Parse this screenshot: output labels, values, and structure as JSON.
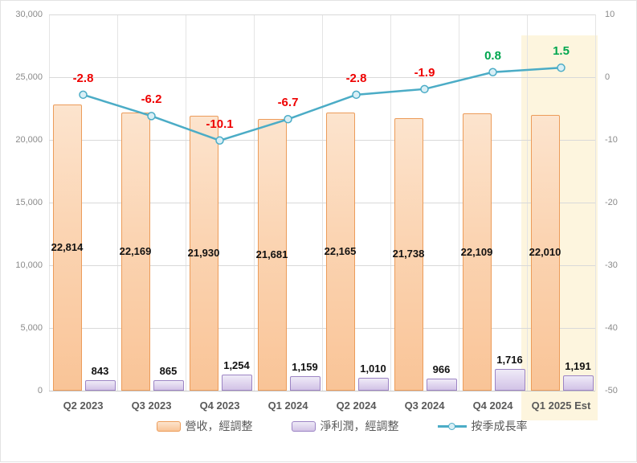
{
  "chart_data": {
    "type": "combo-bar-line",
    "title": "",
    "categories": [
      "Q2 2023",
      "Q3 2023",
      "Q4 2023",
      "Q1 2024",
      "Q2 2024",
      "Q3 2024",
      "Q4 2024",
      "Q1 2025 Est"
    ],
    "series": [
      {
        "name": "營收，經調整",
        "type": "bar",
        "axis": "left",
        "values": [
          22814,
          22169,
          21930,
          21681,
          22165,
          21738,
          22109,
          22010
        ],
        "labels": [
          "22,814",
          "22,169",
          "21,930",
          "21,681",
          "22,165",
          "21,738",
          "22,109",
          "22,010"
        ]
      },
      {
        "name": "淨利潤，經調整",
        "type": "bar",
        "axis": "left",
        "values": [
          843,
          865,
          1254,
          1159,
          1010,
          966,
          1716,
          1191
        ],
        "labels": [
          "843",
          "865",
          "1,254",
          "1,159",
          "1,010",
          "966",
          "1,716",
          "1,191"
        ]
      },
      {
        "name": "按季成長率",
        "type": "line",
        "axis": "right",
        "values": [
          -2.8,
          -6.2,
          -10.1,
          -6.7,
          -2.8,
          -1.9,
          0.8,
          1.5
        ],
        "labels": [
          "-2.8",
          "-6.2",
          "-10.1",
          "-6.7",
          "-2.8",
          "-1.9",
          "0.8",
          "1.5"
        ]
      }
    ],
    "left_axis": {
      "min": 0,
      "max": 30000,
      "step": 5000,
      "tick_labels": [
        "0",
        "5,000",
        "10,000",
        "15,000",
        "20,000",
        "25,000",
        "30,000"
      ]
    },
    "right_axis": {
      "min": -50,
      "max": 10,
      "step": 10,
      "tick_labels": [
        "-50",
        "-40",
        "-30",
        "-20",
        "-10",
        "0",
        "10"
      ]
    },
    "highlight_category": "Q1 2025 Est",
    "grid": true,
    "legend_position": "bottom"
  },
  "colors": {
    "bar_revenue_fill": "#FBD4B2",
    "bar_revenue_border": "#EC9C5A",
    "bar_net_fill": "#E2D8F0",
    "bar_net_border": "#9C84C4",
    "line": "#4BACC6",
    "marker_fill": "#D9EFF6",
    "label_negative": "#EE0000",
    "label_positive": "#00A64F",
    "highlight_bg": "#FDF5DE",
    "gridline": "#D9D9D9",
    "axis_text": "#8A8A8A",
    "category_text": "#595959"
  }
}
